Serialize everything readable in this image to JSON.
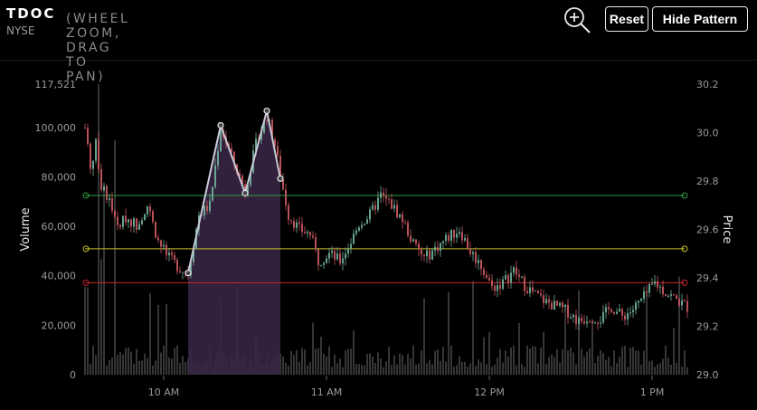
{
  "header": {
    "ticker": "TDOC",
    "subtitle": "(WHEEL ZOOM, DRAG TO PAN)",
    "exchange": "NYSE",
    "reset_label": "Reset",
    "hide_pattern_label": "Hide Pattern",
    "zoom_icon": "zoom-in-icon"
  },
  "chart_data": {
    "type": "candlestick",
    "xlabel": "",
    "ylabel_left": "Volume",
    "ylabel_right": "Price",
    "x_ticks": [
      "10 AM",
      "11 AM",
      "12 PM",
      "1 PM"
    ],
    "x_tick_minutes": [
      600,
      660,
      720,
      780
    ],
    "x_range_minutes": [
      571,
      793
    ],
    "volume_ticks": [
      "0",
      "20,000",
      "40,000",
      "60,000",
      "80,000",
      "100,000",
      "117,521"
    ],
    "volume_tick_values": [
      0,
      20000,
      40000,
      60000,
      80000,
      100000,
      117521
    ],
    "volume_range": [
      0,
      117521
    ],
    "price_ticks": [
      "29.0",
      "29.2",
      "29.4",
      "29.6",
      "29.8",
      "30.0",
      "30.2"
    ],
    "price_tick_values": [
      29.0,
      29.2,
      29.4,
      29.6,
      29.8,
      30.0,
      30.2
    ],
    "price_range": [
      29.0,
      30.2
    ],
    "grid": false,
    "horizontal_levels": [
      {
        "price": 29.74,
        "color": "#2ea043"
      },
      {
        "price": 29.52,
        "color": "#c9c32a"
      },
      {
        "price": 29.38,
        "color": "#c4282f"
      }
    ],
    "pattern": {
      "name": "double top",
      "points": [
        {
          "minute": 609,
          "price": 29.42
        },
        {
          "minute": 621,
          "price": 30.03
        },
        {
          "minute": 630,
          "price": 29.75
        },
        {
          "minute": 638,
          "price": 30.09
        },
        {
          "minute": 643,
          "price": 29.81
        }
      ],
      "shade_start_minute": 609,
      "shade_end_minute": 643,
      "shade_color": "#3a2748",
      "line_color": "#c9c9d6"
    },
    "price_path": [
      [
        571,
        30.02
      ],
      [
        573,
        29.85
      ],
      [
        575,
        29.95
      ],
      [
        577,
        29.78
      ],
      [
        580,
        29.72
      ],
      [
        583,
        29.6
      ],
      [
        586,
        29.65
      ],
      [
        590,
        29.62
      ],
      [
        594,
        29.7
      ],
      [
        598,
        29.55
      ],
      [
        602,
        29.48
      ],
      [
        606,
        29.44
      ],
      [
        609,
        29.42
      ],
      [
        613,
        29.66
      ],
      [
        617,
        29.7
      ],
      [
        621,
        30.02
      ],
      [
        625,
        29.9
      ],
      [
        630,
        29.76
      ],
      [
        634,
        29.95
      ],
      [
        638,
        30.07
      ],
      [
        641,
        29.95
      ],
      [
        643,
        29.82
      ],
      [
        646,
        29.66
      ],
      [
        650,
        29.6
      ],
      [
        654,
        29.58
      ],
      [
        657,
        29.47
      ],
      [
        661,
        29.5
      ],
      [
        665,
        29.47
      ],
      [
        669,
        29.55
      ],
      [
        672,
        29.62
      ],
      [
        676,
        29.66
      ],
      [
        680,
        29.74
      ],
      [
        684,
        29.7
      ],
      [
        688,
        29.64
      ],
      [
        692,
        29.54
      ],
      [
        696,
        29.48
      ],
      [
        700,
        29.52
      ],
      [
        705,
        29.57
      ],
      [
        709,
        29.6
      ],
      [
        713,
        29.51
      ],
      [
        717,
        29.45
      ],
      [
        721,
        29.36
      ],
      [
        725,
        29.38
      ],
      [
        729,
        29.43
      ],
      [
        733,
        29.37
      ],
      [
        737,
        29.33
      ],
      [
        741,
        29.3
      ],
      [
        745,
        29.28
      ],
      [
        749,
        29.26
      ],
      [
        753,
        29.22
      ],
      [
        757,
        29.24
      ],
      [
        761,
        29.23
      ],
      [
        765,
        29.28
      ],
      [
        769,
        29.24
      ],
      [
        773,
        29.27
      ],
      [
        777,
        29.32
      ],
      [
        781,
        29.38
      ],
      [
        785,
        29.34
      ],
      [
        789,
        29.31
      ],
      [
        793,
        29.28
      ]
    ],
    "candle_up_color": "#6fae98",
    "candle_down_color": "#c5575f",
    "volume_bar_color": "#3a3a3a"
  }
}
